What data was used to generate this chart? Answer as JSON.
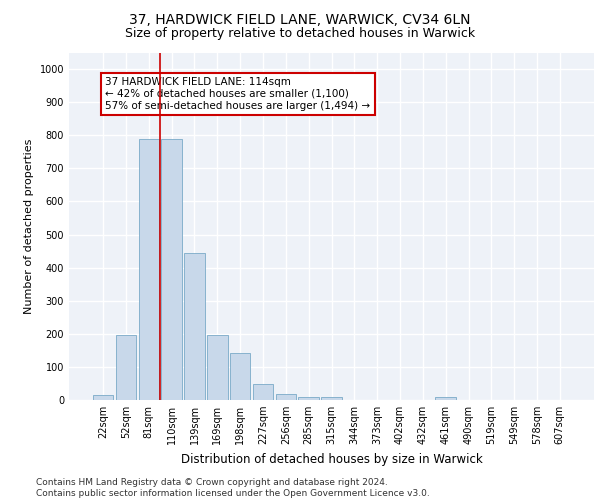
{
  "title1": "37, HARDWICK FIELD LANE, WARWICK, CV34 6LN",
  "title2": "Size of property relative to detached houses in Warwick",
  "xlabel": "Distribution of detached houses by size in Warwick",
  "ylabel": "Number of detached properties",
  "categories": [
    "22sqm",
    "52sqm",
    "81sqm",
    "110sqm",
    "139sqm",
    "169sqm",
    "198sqm",
    "227sqm",
    "256sqm",
    "285sqm",
    "315sqm",
    "344sqm",
    "373sqm",
    "402sqm",
    "432sqm",
    "461sqm",
    "490sqm",
    "519sqm",
    "549sqm",
    "578sqm",
    "607sqm"
  ],
  "values": [
    15,
    197,
    790,
    790,
    443,
    197,
    143,
    48,
    18,
    10,
    10,
    0,
    0,
    0,
    0,
    10,
    0,
    0,
    0,
    0,
    0
  ],
  "bar_color": "#c8d8ea",
  "bar_edge_color": "#7aaac8",
  "vline_color": "#cc0000",
  "vline_x": 2.5,
  "annotation_text": "37 HARDWICK FIELD LANE: 114sqm\n← 42% of detached houses are smaller (1,100)\n57% of semi-detached houses are larger (1,494) →",
  "annotation_box_color": "#ffffff",
  "annotation_box_edge_color": "#cc0000",
  "ylim": [
    0,
    1050
  ],
  "yticks": [
    0,
    100,
    200,
    300,
    400,
    500,
    600,
    700,
    800,
    900,
    1000
  ],
  "bg_color": "#eef2f8",
  "grid_color": "#ffffff",
  "footnote": "Contains HM Land Registry data © Crown copyright and database right 2024.\nContains public sector information licensed under the Open Government Licence v3.0.",
  "title1_fontsize": 10,
  "title2_fontsize": 9,
  "xlabel_fontsize": 8.5,
  "ylabel_fontsize": 8,
  "tick_fontsize": 7,
  "annotation_fontsize": 7.5,
  "footnote_fontsize": 6.5
}
